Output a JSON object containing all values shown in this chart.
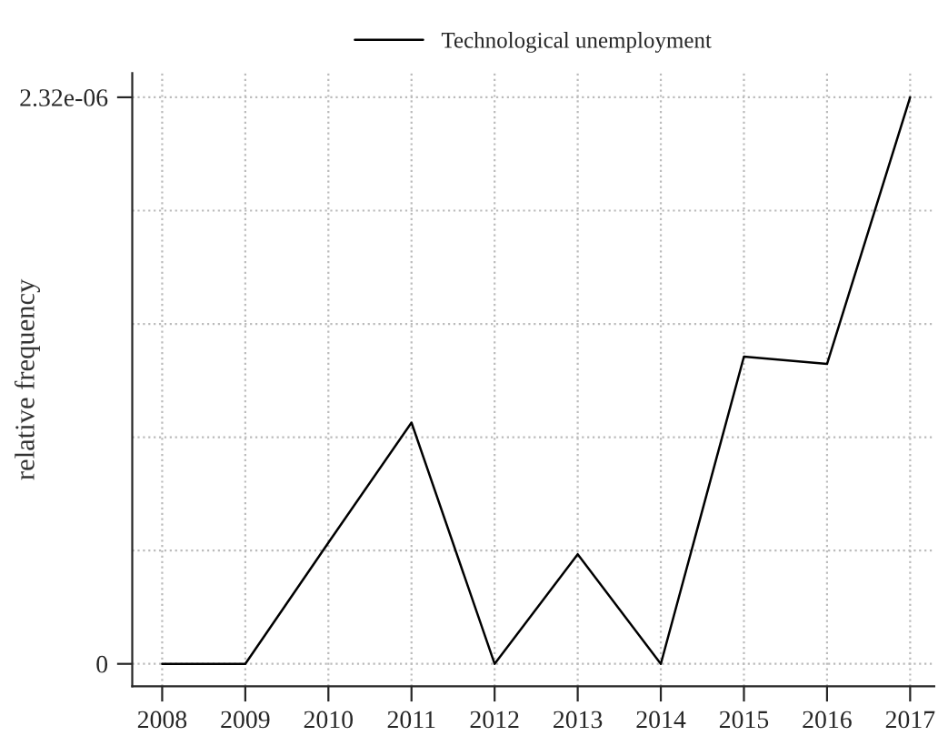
{
  "chart_data": {
    "type": "line",
    "ylabel": "relative frequency",
    "x": [
      2008,
      2009,
      2010,
      2011,
      2012,
      2013,
      2014,
      2015,
      2016,
      2017
    ],
    "series": [
      {
        "name": "Technological unemployment",
        "color": "#000000",
        "values": [
          0,
          0,
          4.96e-07,
          9.88e-07,
          0,
          4.49e-07,
          0,
          1.258e-06,
          1.228e-06,
          2.32e-06
        ]
      }
    ],
    "xlim": [
      2007.64,
      2017.29
    ],
    "xticks": [
      2008,
      2009,
      2010,
      2011,
      2012,
      2013,
      2014,
      2015,
      2016,
      2017
    ],
    "ylim": [
      -9.2e-08,
      2.419e-06
    ],
    "yticks": [
      {
        "value": 0,
        "label": "0"
      },
      {
        "value": 4.64e-07,
        "label": null
      },
      {
        "value": 9.28e-07,
        "label": null
      },
      {
        "value": 1.392e-06,
        "label": null
      },
      {
        "value": 1.856e-06,
        "label": null
      },
      {
        "value": 2.32e-06,
        "label": "2.32e-06"
      }
    ],
    "grid": true,
    "legend": "top",
    "line_style": "solid",
    "marker": "none"
  }
}
